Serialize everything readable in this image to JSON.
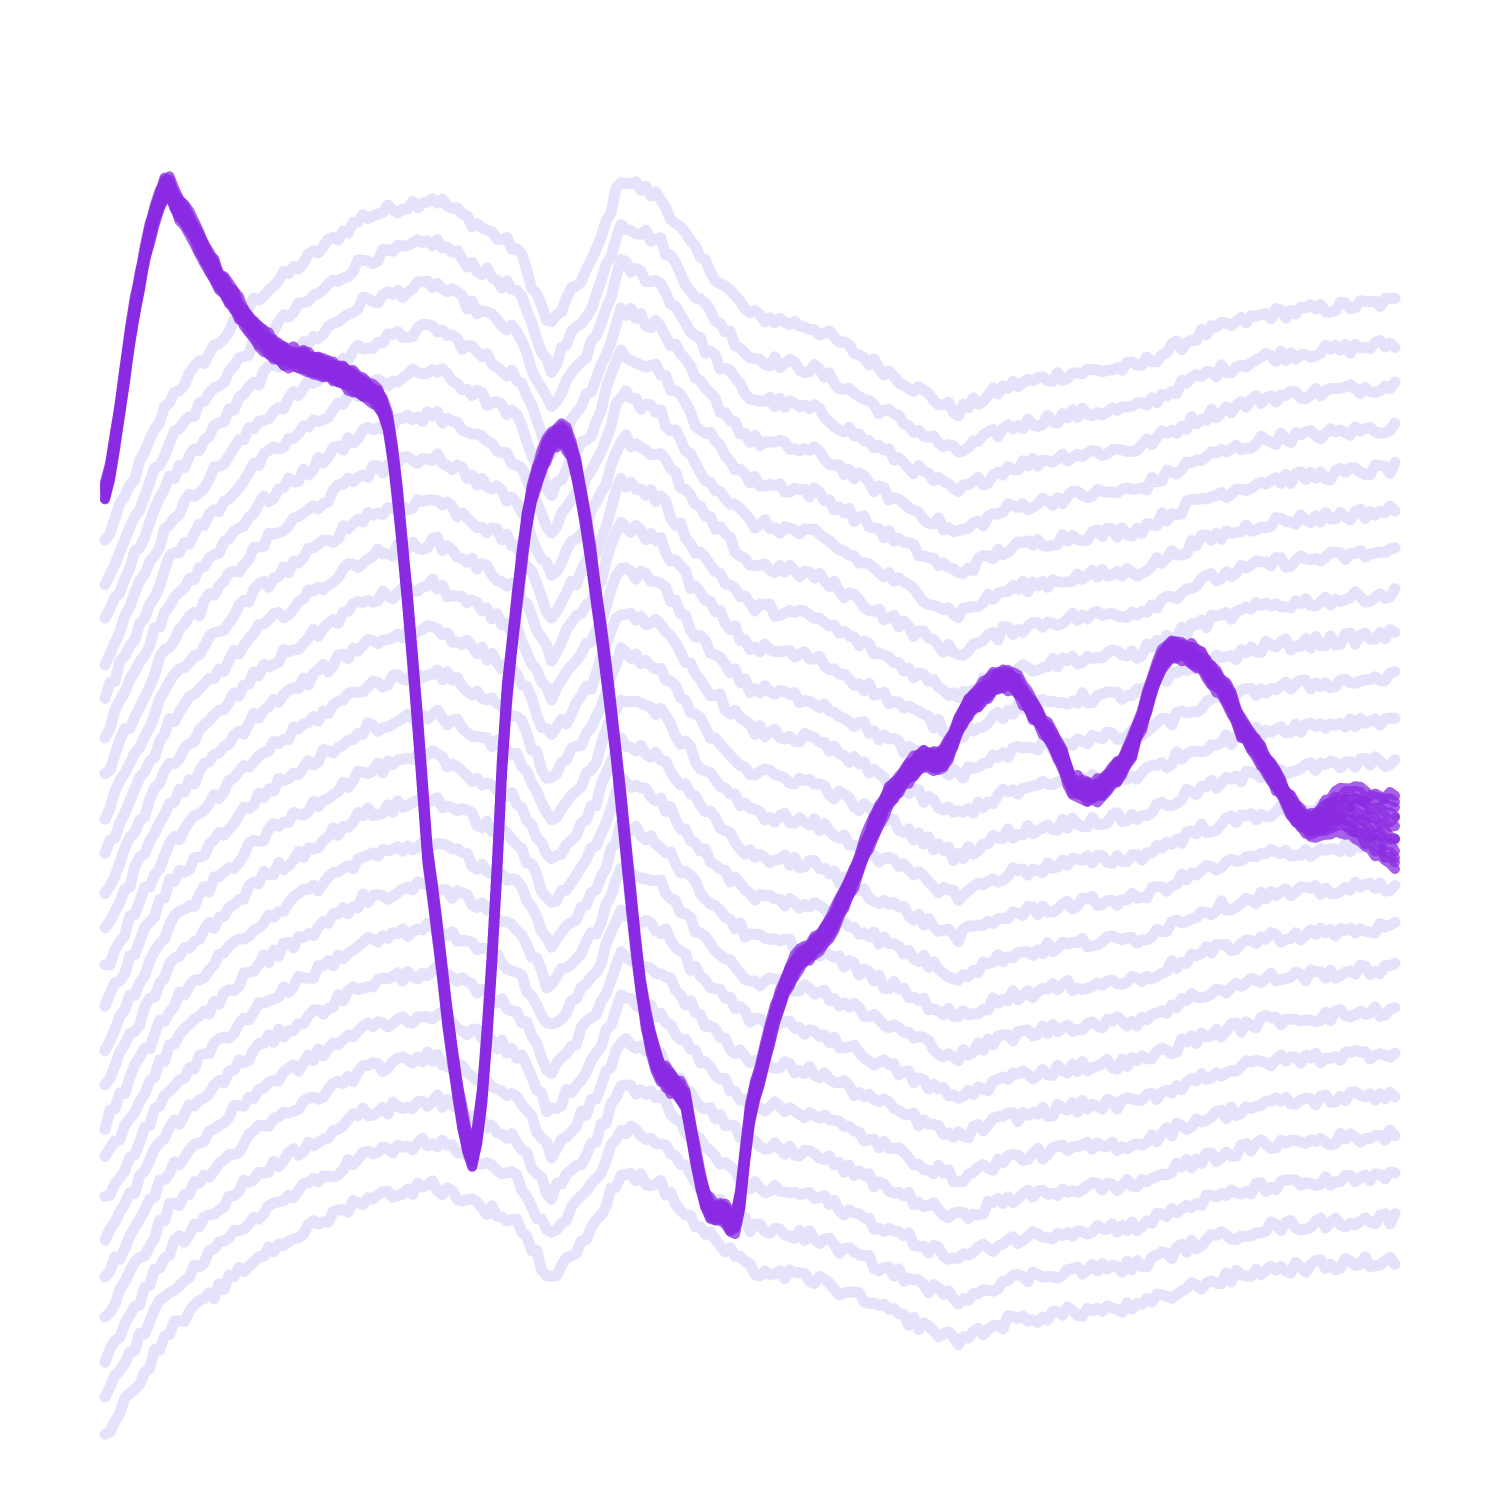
{
  "chart_data": {
    "type": "line",
    "title": "",
    "xlabel": "",
    "ylabel": "",
    "axes_visible": false,
    "grid": false,
    "legend": "none",
    "colors": {
      "background_series": "#e4e3fb",
      "highlight_series": "#8a2be2",
      "page_background": "#ffffff"
    },
    "xlim": [
      0,
      1
    ],
    "ylim": [
      0,
      1
    ],
    "background_series_count": 24,
    "background_base_profile": {
      "x": [
        0.0,
        0.05,
        0.12,
        0.2,
        0.255,
        0.32,
        0.345,
        0.38,
        0.4,
        0.43,
        0.46,
        0.5,
        0.55,
        0.6,
        0.66,
        0.7,
        0.75,
        0.8,
        0.85,
        0.9,
        0.95,
        1.0
      ],
      "y": [
        0.66,
        0.77,
        0.85,
        0.91,
        0.925,
        0.885,
        0.825,
        0.88,
        0.94,
        0.925,
        0.88,
        0.835,
        0.825,
        0.795,
        0.76,
        0.78,
        0.79,
        0.795,
        0.82,
        0.835,
        0.84,
        0.845
      ]
    },
    "background_series_offsets": [
      0.0,
      -0.032,
      -0.063,
      -0.095,
      -0.126,
      -0.158,
      -0.189,
      -0.221,
      -0.252,
      -0.284,
      -0.315,
      -0.347,
      -0.378,
      -0.41,
      -0.441,
      -0.473,
      -0.504,
      -0.536,
      -0.567,
      -0.599,
      -0.63,
      -0.662,
      -0.693,
      -0.725
    ],
    "highlight_profile": {
      "x": [
        0.0,
        0.025,
        0.045,
        0.055,
        0.09,
        0.13,
        0.155,
        0.2,
        0.22,
        0.235,
        0.25,
        0.28,
        0.29,
        0.3,
        0.31,
        0.33,
        0.36,
        0.39,
        0.42,
        0.45,
        0.465,
        0.48,
        0.49,
        0.5,
        0.51,
        0.52,
        0.535,
        0.55,
        0.57,
        0.6,
        0.63,
        0.65,
        0.67,
        0.7,
        0.72,
        0.74,
        0.75,
        0.77,
        0.79,
        0.8,
        0.82,
        0.84,
        0.87,
        0.88,
        0.9,
        0.93,
        0.96,
        1.0
      ],
      "y": [
        0.7,
        0.85,
        0.93,
        0.92,
        0.86,
        0.81,
        0.8,
        0.78,
        0.75,
        0.61,
        0.42,
        0.205,
        0.215,
        0.34,
        0.53,
        0.695,
        0.735,
        0.55,
        0.29,
        0.23,
        0.155,
        0.145,
        0.14,
        0.22,
        0.26,
        0.3,
        0.335,
        0.35,
        0.38,
        0.45,
        0.49,
        0.495,
        0.535,
        0.555,
        0.53,
        0.5,
        0.475,
        0.47,
        0.49,
        0.515,
        0.57,
        0.575,
        0.545,
        0.52,
        0.49,
        0.445,
        0.455,
        0.44
      ]
    },
    "highlight_variant_count": 12
  }
}
